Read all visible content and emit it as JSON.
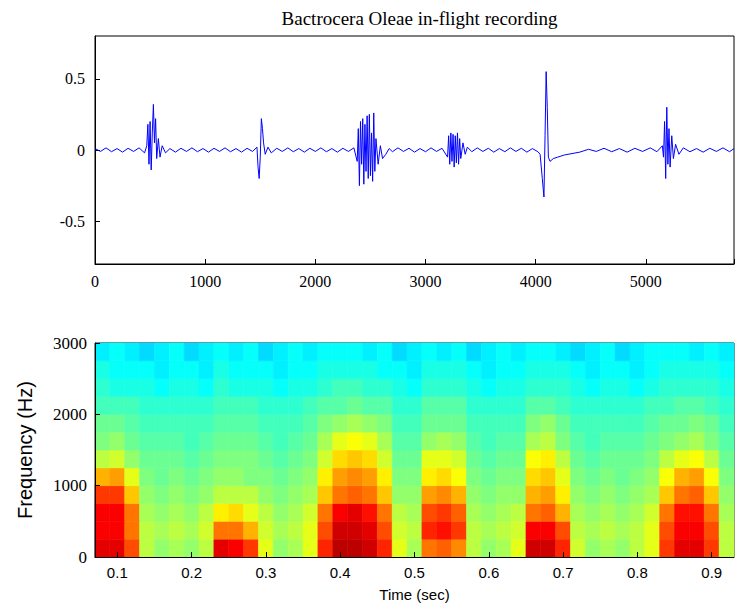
{
  "chart_data": [
    {
      "type": "line",
      "title": "Bactrocera Oleae in-flight recording",
      "color": "#0000ff",
      "x": [
        0,
        50,
        100,
        150,
        200,
        250,
        300,
        350,
        400,
        450,
        470,
        480,
        490,
        500,
        510,
        520,
        530,
        540,
        550,
        560,
        575,
        590,
        610,
        640,
        680,
        730,
        780,
        830,
        880,
        930,
        980,
        1030,
        1080,
        1130,
        1180,
        1230,
        1280,
        1330,
        1380,
        1430,
        1470,
        1480,
        1490,
        1500,
        1510,
        1520,
        1530,
        1545,
        1570,
        1600,
        1650,
        1700,
        1750,
        1800,
        1850,
        1900,
        1950,
        2000,
        2050,
        2100,
        2150,
        2200,
        2250,
        2300,
        2350,
        2380,
        2390,
        2400,
        2410,
        2420,
        2430,
        2440,
        2450,
        2460,
        2470,
        2480,
        2490,
        2500,
        2510,
        2520,
        2530,
        2540,
        2550,
        2570,
        2590,
        2610,
        2640,
        2670,
        2700,
        2750,
        2800,
        2850,
        2900,
        2950,
        3000,
        3050,
        3100,
        3150,
        3200,
        3210,
        3220,
        3230,
        3240,
        3250,
        3260,
        3270,
        3280,
        3290,
        3300,
        3310,
        3320,
        3340,
        3360,
        3380,
        3420,
        3470,
        3520,
        3570,
        3620,
        3670,
        3720,
        3770,
        3820,
        3870,
        3920,
        3970,
        4020,
        4040,
        4060,
        4075,
        4085,
        4095,
        4105,
        4115,
        4130,
        4160,
        4200,
        4260,
        4330,
        4400,
        4480,
        4550,
        4620,
        4690,
        4760,
        4830,
        4900,
        4970,
        5040,
        5100,
        5150,
        5160,
        5170,
        5180,
        5190,
        5200,
        5210,
        5220,
        5235,
        5250,
        5270,
        5300,
        5340,
        5400,
        5460,
        5520,
        5580,
        5640,
        5700,
        5760,
        5800
      ],
      "values": [
        0.01,
        -0.01,
        0.015,
        -0.012,
        0.01,
        -0.015,
        0.012,
        -0.01,
        0.015,
        -0.02,
        0.03,
        0.18,
        -0.1,
        0.2,
        -0.14,
        0.12,
        0.32,
        0.05,
        0.22,
        -0.06,
        0.08,
        -0.05,
        0.03,
        -0.02,
        0.01,
        -0.015,
        0.012,
        -0.01,
        0.015,
        -0.012,
        0.01,
        -0.015,
        0.012,
        -0.01,
        0.015,
        -0.012,
        0.01,
        -0.015,
        0.012,
        -0.01,
        0.02,
        -0.12,
        -0.2,
        -0.05,
        0.22,
        0.15,
        0.05,
        -0.03,
        0.02,
        -0.02,
        0.012,
        -0.01,
        0.015,
        -0.012,
        0.01,
        -0.015,
        0.012,
        -0.01,
        0.015,
        -0.012,
        0.01,
        -0.015,
        0.012,
        -0.01,
        0.015,
        -0.08,
        0.15,
        -0.25,
        0.2,
        -0.1,
        0.22,
        -0.24,
        0.18,
        -0.15,
        0.24,
        -0.2,
        0.25,
        -0.18,
        0.12,
        -0.22,
        0.26,
        -0.15,
        0.08,
        -0.1,
        0.03,
        -0.06,
        -0.03,
        0.01,
        -0.012,
        0.015,
        -0.01,
        0.012,
        -0.015,
        0.01,
        -0.012,
        0.015,
        -0.01,
        0.012,
        -0.05,
        0.1,
        -0.1,
        0.12,
        -0.08,
        0.11,
        -0.12,
        0.1,
        -0.09,
        0.12,
        -0.1,
        0.08,
        -0.06,
        0.05,
        -0.03,
        0.02,
        -0.012,
        0.015,
        -0.01,
        0.012,
        -0.015,
        0.01,
        -0.012,
        0.015,
        -0.01,
        0.012,
        -0.015,
        0.01,
        -0.012,
        -0.03,
        -0.2,
        -0.33,
        0.1,
        0.55,
        0.3,
        -0.05,
        -0.08,
        -0.06,
        -0.05,
        -0.035,
        -0.025,
        -0.015,
        0.005,
        -0.01,
        0.012,
        -0.012,
        0.01,
        -0.015,
        0.012,
        -0.01,
        0.015,
        -0.012,
        0.03,
        -0.05,
        0.2,
        -0.2,
        0.3,
        -0.1,
        0.15,
        -0.12,
        0.1,
        -0.06,
        0.04,
        -0.03,
        0.015,
        -0.012,
        0.01,
        -0.015,
        0.012,
        -0.01,
        0.015,
        -0.012,
        0.01
      ],
      "xlim": [
        0,
        5800
      ],
      "xticks": [
        0,
        1000,
        2000,
        3000,
        4000,
        5000
      ],
      "ylim": [
        -0.8,
        0.8
      ],
      "yticks": [
        -0.5,
        0,
        0.5
      ],
      "grid": false
    },
    {
      "type": "heatmap",
      "xlabel": "Time (sec)",
      "ylabel": "Frequency (Hz)",
      "time_bins": [
        0.07,
        0.09,
        0.11,
        0.13,
        0.15,
        0.17,
        0.19,
        0.21,
        0.23,
        0.25,
        0.27,
        0.29,
        0.31,
        0.33,
        0.35,
        0.37,
        0.39,
        0.41,
        0.43,
        0.45,
        0.47,
        0.49,
        0.51,
        0.53,
        0.55,
        0.57,
        0.59,
        0.61,
        0.63,
        0.65,
        0.67,
        0.69,
        0.71,
        0.73,
        0.75,
        0.77,
        0.79,
        0.81,
        0.83,
        0.85,
        0.87,
        0.89,
        0.91,
        0.93
      ],
      "freq_bins": [
        0,
        250,
        500,
        750,
        1000,
        1250,
        1500,
        1750,
        2000,
        2250,
        2500,
        2750,
        3000
      ],
      "cells": [
        [
          -5,
          -5,
          -10,
          -22,
          -24,
          -23,
          -24,
          -22,
          -5,
          -6,
          -9,
          -20,
          -24,
          -23,
          -20,
          -8,
          -3,
          -3,
          -4,
          -8,
          -20,
          -23,
          -12,
          -11,
          -13,
          -22,
          -24,
          -23,
          -20,
          -4,
          -4,
          -8,
          -21,
          -24,
          -23,
          -24,
          -22,
          -20,
          -9,
          -5,
          -5,
          -9,
          -22
        ],
        [
          -6,
          -6,
          -12,
          -22,
          -23,
          -22,
          -23,
          -21,
          -12,
          -12,
          -15,
          -21,
          -23,
          -22,
          -20,
          -10,
          -4,
          -4,
          -5,
          -10,
          -21,
          -22,
          -8,
          -7,
          -9,
          -22,
          -23,
          -22,
          -21,
          -6,
          -6,
          -10,
          -22,
          -23,
          -22,
          -23,
          -22,
          -20,
          -10,
          -6,
          -6,
          -10,
          -22
        ],
        [
          -6,
          -6,
          -12,
          -23,
          -24,
          -23,
          -24,
          -22,
          -18,
          -17,
          -20,
          -22,
          -24,
          -23,
          -21,
          -12,
          -6,
          -5,
          -7,
          -12,
          -22,
          -23,
          -10,
          -9,
          -11,
          -23,
          -24,
          -23,
          -22,
          -12,
          -11,
          -15,
          -23,
          -24,
          -23,
          -24,
          -23,
          -21,
          -12,
          -7,
          -7,
          -12,
          -23
        ],
        [
          -9,
          -9,
          -16,
          -24,
          -25,
          -24,
          -25,
          -24,
          -22,
          -22,
          -22,
          -24,
          -25,
          -24,
          -23,
          -16,
          -12,
          -11,
          -12,
          -16,
          -24,
          -24,
          -14,
          -13,
          -15,
          -24,
          -25,
          -24,
          -24,
          -15,
          -14,
          -18,
          -24,
          -25,
          -24,
          -25,
          -24,
          -23,
          -16,
          -12,
          -11,
          -16,
          -24
        ],
        [
          -15,
          -14,
          -20,
          -25,
          -26,
          -25,
          -26,
          -25,
          -24,
          -24,
          -25,
          -25,
          -26,
          -25,
          -24,
          -18,
          -14,
          -13,
          -14,
          -18,
          -25,
          -25,
          -18,
          -17,
          -19,
          -25,
          -26,
          -25,
          -25,
          -17,
          -16,
          -20,
          -25,
          -26,
          -25,
          -26,
          -25,
          -24,
          -19,
          -15,
          -14,
          -19,
          -25
        ],
        [
          -22,
          -21,
          -24,
          -26,
          -26,
          -26,
          -27,
          -26,
          -25,
          -25,
          -25,
          -26,
          -27,
          -26,
          -25,
          -21,
          -17,
          -16,
          -17,
          -21,
          -26,
          -26,
          -20,
          -20,
          -21,
          -26,
          -27,
          -26,
          -26,
          -19,
          -18,
          -22,
          -26,
          -27,
          -26,
          -26,
          -26,
          -25,
          -22,
          -20,
          -19,
          -22,
          -26
        ],
        [
          -25,
          -24,
          -26,
          -27,
          -27,
          -27,
          -28,
          -27,
          -26,
          -26,
          -26,
          -27,
          -28,
          -27,
          -26,
          -23,
          -20,
          -19,
          -20,
          -23,
          -27,
          -27,
          -24,
          -23,
          -24,
          -27,
          -28,
          -27,
          -27,
          -23,
          -22,
          -25,
          -27,
          -28,
          -27,
          -27,
          -27,
          -26,
          -25,
          -24,
          -23,
          -25,
          -27
        ],
        [
          -26,
          -26,
          -27,
          -28,
          -28,
          -28,
          -28,
          -28,
          -27,
          -27,
          -27,
          -28,
          -28,
          -28,
          -27,
          -25,
          -24,
          -23,
          -24,
          -25,
          -28,
          -28,
          -26,
          -26,
          -26,
          -28,
          -28,
          -28,
          -28,
          -25,
          -24,
          -26,
          -28,
          -28,
          -28,
          -28,
          -28,
          -27,
          -26,
          -26,
          -25,
          -26,
          -28
        ],
        [
          -28,
          -28,
          -28,
          -29,
          -29,
          -29,
          -29,
          -29,
          -28,
          -28,
          -28,
          -29,
          -29,
          -29,
          -28,
          -27,
          -27,
          -26,
          -27,
          -27,
          -29,
          -29,
          -27,
          -27,
          -27,
          -29,
          -29,
          -29,
          -29,
          -27,
          -27,
          -28,
          -29,
          -29,
          -29,
          -29,
          -29,
          -28,
          -28,
          -27,
          -27,
          -28,
          -29
        ],
        [
          -29,
          -30,
          -30,
          -30,
          -31,
          -30,
          -30,
          -31,
          -29,
          -30,
          -30,
          -30,
          -31,
          -30,
          -30,
          -29,
          -28,
          -28,
          -29,
          -29,
          -30,
          -31,
          -29,
          -29,
          -29,
          -30,
          -31,
          -30,
          -30,
          -29,
          -29,
          -29,
          -30,
          -31,
          -30,
          -30,
          -31,
          -30,
          -29,
          -29,
          -29,
          -29,
          -30
        ],
        [
          -30,
          -31,
          -31,
          -31,
          -32,
          -31,
          -31,
          -32,
          -30,
          -31,
          -31,
          -31,
          -32,
          -31,
          -31,
          -30,
          -30,
          -30,
          -30,
          -31,
          -31,
          -32,
          -30,
          -30,
          -30,
          -31,
          -32,
          -31,
          -31,
          -30,
          -30,
          -30,
          -31,
          -32,
          -31,
          -31,
          -32,
          -31,
          -30,
          -30,
          -30,
          -30,
          -31
        ],
        [
          -32,
          -31,
          -32,
          -33,
          -32,
          -31,
          -33,
          -32,
          -31,
          -32,
          -31,
          -33,
          -32,
          -31,
          -32,
          -31,
          -31,
          -31,
          -32,
          -31,
          -33,
          -32,
          -31,
          -32,
          -31,
          -33,
          -32,
          -31,
          -32,
          -31,
          -31,
          -32,
          -33,
          -32,
          -31,
          -33,
          -32,
          -31,
          -31,
          -31,
          -32,
          -31,
          -32
        ]
      ],
      "zlim": [
        -50,
        0
      ],
      "xlim": [
        0.07,
        0.93
      ],
      "xticks": [
        0.1,
        0.2,
        0.3,
        0.4,
        0.5,
        0.6,
        0.7,
        0.8,
        0.9
      ],
      "ylim": [
        0,
        3000
      ],
      "yticks": [
        0,
        1000,
        2000,
        3000
      ],
      "grid": false
    }
  ]
}
